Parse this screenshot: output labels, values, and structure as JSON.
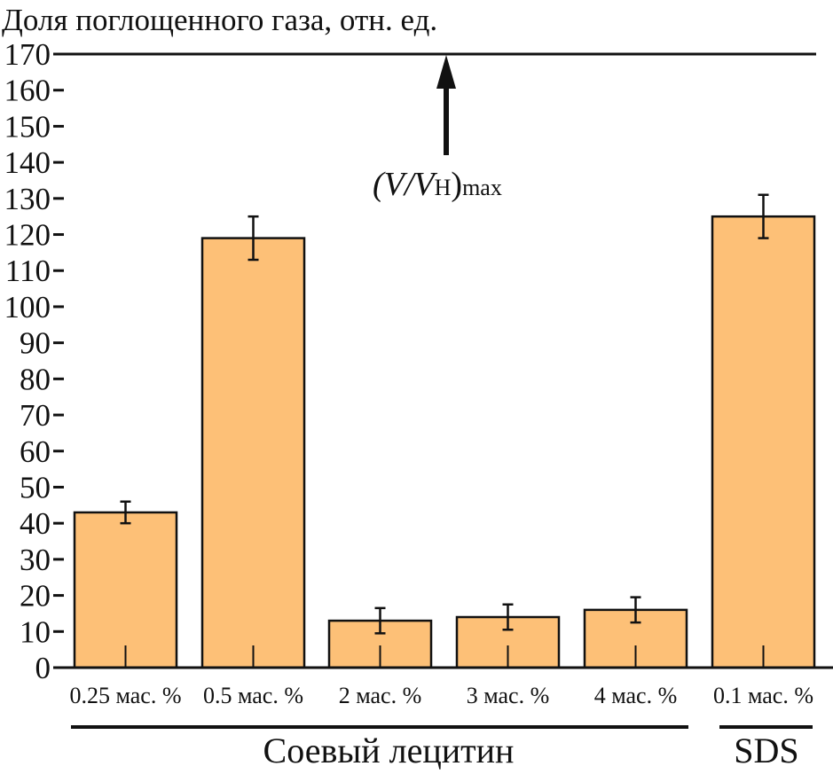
{
  "chart_data": {
    "type": "bar",
    "ylabel": "Доля поглощенного газа, отн. ед.",
    "xlabel": "",
    "ylim": [
      0,
      170
    ],
    "yticks": [
      0,
      10,
      20,
      30,
      40,
      50,
      60,
      70,
      80,
      90,
      100,
      110,
      120,
      130,
      140,
      150,
      160,
      170
    ],
    "grid": false,
    "categories": [
      "0.25 мас. %",
      "0.5 мас. %",
      "2 мас. %",
      "3 мас. %",
      "4 мас. %",
      "0.1  мас. %"
    ],
    "values": [
      43,
      119,
      13,
      14,
      16,
      125
    ],
    "errors": [
      3,
      6,
      3.5,
      3.5,
      3.5,
      6
    ],
    "groups": [
      {
        "label": "Соевый лецитин",
        "categories": [
          0,
          1,
          2,
          3,
          4
        ]
      },
      {
        "label": "SDS",
        "categories": [
          5
        ]
      }
    ],
    "reference_line": {
      "value": 170,
      "label_main": "(V/V",
      "label_sub": "H",
      "label_close": ")",
      "label_suffix": "max"
    },
    "bar_color": "#FDC077"
  }
}
